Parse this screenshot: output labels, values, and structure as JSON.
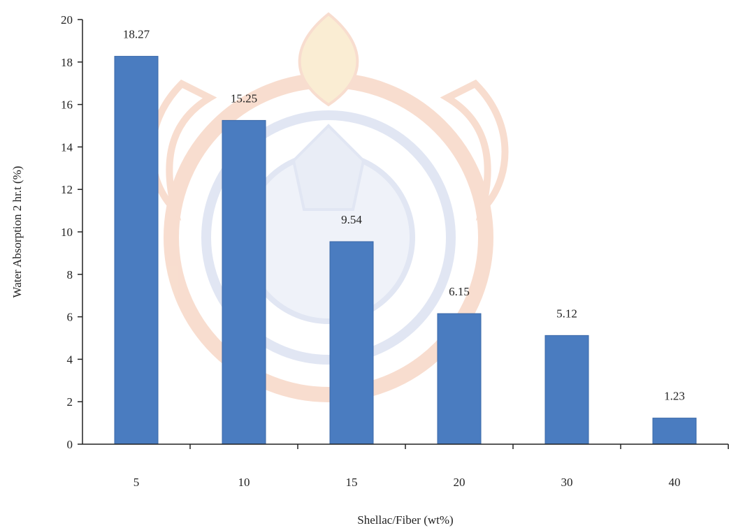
{
  "chart_data": {
    "type": "bar",
    "categories": [
      "5",
      "10",
      "15",
      "20",
      "30",
      "40"
    ],
    "values": [
      18.27,
      15.25,
      9.54,
      6.15,
      5.12,
      1.23
    ],
    "value_labels": [
      "18.27",
      "15.25",
      "9.54",
      "6.15",
      "5.12",
      "1.23"
    ],
    "title": "",
    "xlabel": "Shellac/Fiber (wt%)",
    "ylabel": "Water Absorption 2 hr.t (%)",
    "ylim": [
      0,
      20
    ],
    "yticks": [
      0,
      2,
      4,
      6,
      8,
      10,
      12,
      14,
      16,
      18,
      20
    ],
    "grid": false,
    "legend": "none",
    "bar_color": "#4a7cc0",
    "bar_edge_color": "#3a68a8",
    "axis_color": "#222222",
    "watermark": {
      "description": "university seal",
      "colors": [
        "#f3c2a8",
        "#f6dfb0",
        "#c9d3ea"
      ]
    }
  }
}
